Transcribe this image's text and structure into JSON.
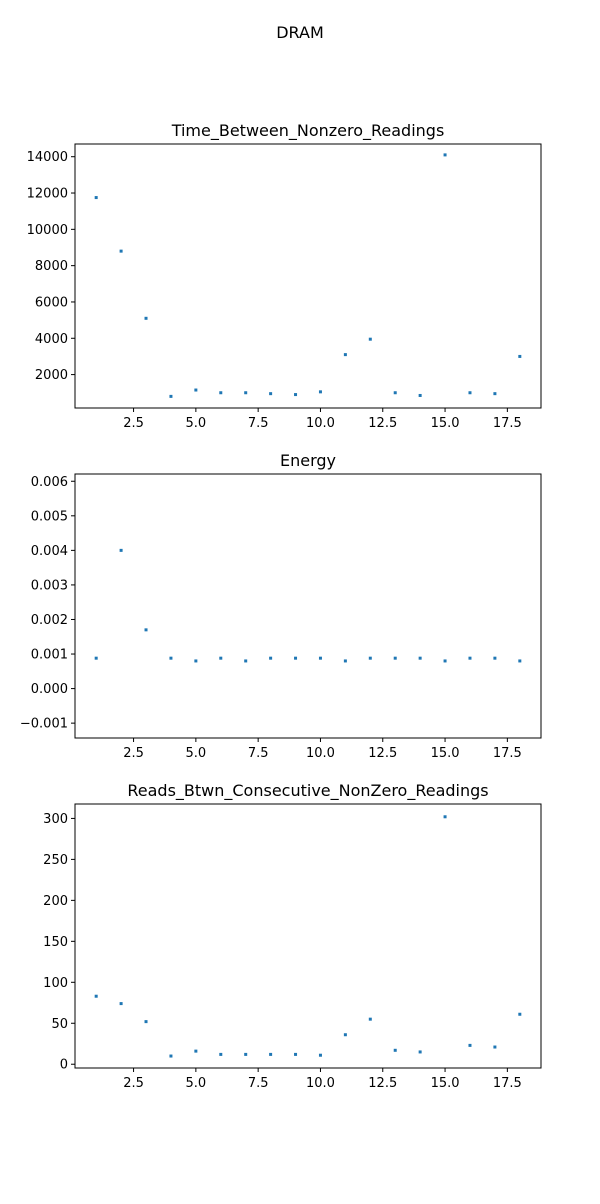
{
  "figure": {
    "suptitle": "DRAM"
  },
  "chart_data": [
    {
      "type": "scatter",
      "title": "Time_Between_Nonzero_Readings",
      "xlabel": "",
      "ylabel": "",
      "xlim": [
        0.15,
        18.85
      ],
      "ylim": [
        160,
        14700
      ],
      "xticks": [
        2.5,
        5.0,
        7.5,
        10.0,
        12.5,
        15.0,
        17.5
      ],
      "xtick_labels": [
        "2.5",
        "5.0",
        "7.5",
        "10.0",
        "12.5",
        "15.0",
        "17.5"
      ],
      "yticks": [
        2000,
        4000,
        6000,
        8000,
        10000,
        12000,
        14000
      ],
      "ytick_labels": [
        "2000",
        "4000",
        "6000",
        "8000",
        "10000",
        "12000",
        "14000"
      ],
      "grid": false,
      "color": "#1f77b4",
      "series": [
        {
          "x": [
            1,
            2,
            3,
            4,
            5,
            6,
            7,
            8,
            9,
            10,
            11,
            12,
            13,
            14,
            15,
            16,
            17,
            18
          ],
          "y": [
            11750,
            8800,
            5100,
            800,
            1150,
            1000,
            1000,
            950,
            900,
            1050,
            3100,
            3950,
            1000,
            850,
            14100,
            1000,
            950,
            3000
          ]
        }
      ]
    },
    {
      "type": "scatter",
      "title": "Energy",
      "xlabel": "",
      "ylabel": "",
      "xlim": [
        0.15,
        18.85
      ],
      "ylim": [
        -0.00143,
        0.00621
      ],
      "xticks": [
        2.5,
        5.0,
        7.5,
        10.0,
        12.5,
        15.0,
        17.5
      ],
      "xtick_labels": [
        "2.5",
        "5.0",
        "7.5",
        "10.0",
        "12.5",
        "15.0",
        "17.5"
      ],
      "yticks": [
        -0.001,
        0.0,
        0.001,
        0.002,
        0.003,
        0.004,
        0.005,
        0.006
      ],
      "ytick_labels": [
        "−0.001",
        "0.000",
        "0.001",
        "0.002",
        "0.003",
        "0.004",
        "0.005",
        "0.006"
      ],
      "grid": false,
      "color": "#1f77b4",
      "series": [
        {
          "x": [
            1,
            2,
            3,
            4,
            5,
            6,
            7,
            8,
            9,
            10,
            11,
            12,
            13,
            14,
            15,
            16,
            17,
            18
          ],
          "y": [
            0.00088,
            0.004,
            0.0017,
            0.00088,
            0.0008,
            0.00088,
            0.0008,
            0.00088,
            0.00088,
            0.00088,
            0.0008,
            0.00088,
            0.00088,
            0.00088,
            0.0008,
            0.00088,
            0.00088,
            0.0008
          ]
        }
      ]
    },
    {
      "type": "scatter",
      "title": "Reads_Btwn_Consecutive_NonZero_Readings",
      "xlabel": "",
      "ylabel": "",
      "xlim": [
        0.15,
        18.85
      ],
      "ylim": [
        -4.6,
        317.6
      ],
      "xticks": [
        2.5,
        5.0,
        7.5,
        10.0,
        12.5,
        15.0,
        17.5
      ],
      "xtick_labels": [
        "2.5",
        "5.0",
        "7.5",
        "10.0",
        "12.5",
        "15.0",
        "17.5"
      ],
      "yticks": [
        0,
        50,
        100,
        150,
        200,
        250,
        300
      ],
      "ytick_labels": [
        "0",
        "50",
        "100",
        "150",
        "200",
        "250",
        "300"
      ],
      "grid": false,
      "color": "#1f77b4",
      "series": [
        {
          "x": [
            1,
            2,
            3,
            4,
            5,
            6,
            7,
            8,
            9,
            10,
            11,
            12,
            13,
            14,
            15,
            16,
            17,
            18
          ],
          "y": [
            83,
            74,
            52,
            10,
            16,
            12,
            12,
            12,
            12,
            11,
            36,
            55,
            17,
            15,
            302,
            23,
            21,
            61
          ]
        }
      ]
    }
  ]
}
